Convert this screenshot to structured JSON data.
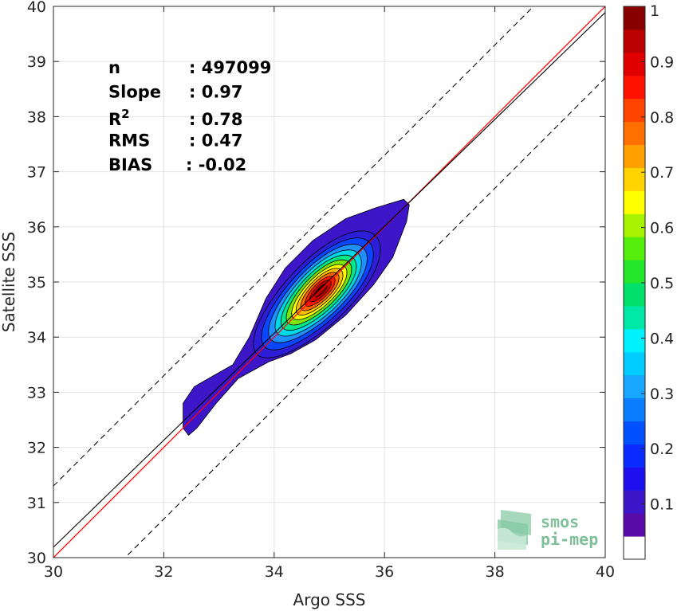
{
  "chart_data": {
    "type": "contour",
    "xlabel": "Argo SSS",
    "ylabel": "Satellite SSS",
    "xlim": [
      30,
      40
    ],
    "ylim": [
      30,
      40
    ],
    "x_ticks": [
      "30",
      "32",
      "34",
      "36",
      "38",
      "40"
    ],
    "y_ticks": [
      "30",
      "31",
      "32",
      "33",
      "34",
      "35",
      "36",
      "37",
      "38",
      "39",
      "40"
    ],
    "grid": true,
    "stats": [
      {
        "label": "n",
        "value": ": 497099"
      },
      {
        "label": "Slope",
        "value": ": 0.97"
      },
      {
        "label": "R",
        "sup": "2",
        "value": ": 0.78"
      },
      {
        "label": "RMS",
        "value": ": 0.47"
      },
      {
        "label": "BIAS",
        "value": ": -0.02"
      }
    ],
    "reference_lines": [
      {
        "kind": "identity",
        "slope": 1.0,
        "intercept": 0.0,
        "color": "#ff0000",
        "style": "solid"
      },
      {
        "kind": "regression",
        "slope": 0.97,
        "intercept": 1.09,
        "color": "#000000",
        "style": "solid"
      },
      {
        "kind": "offset",
        "slope": 1.0,
        "intercept": 1.3,
        "color": "#000000",
        "style": "dashed"
      },
      {
        "kind": "offset",
        "slope": 1.0,
        "intercept": -1.3,
        "color": "#000000",
        "style": "dashed"
      }
    ],
    "density_contours": {
      "center": [
        34.85,
        34.85
      ],
      "major_direction_deg": 45,
      "outer_boundary": [
        [
          32.35,
          32.35
        ],
        [
          32.35,
          32.8
        ],
        [
          32.55,
          33.1
        ],
        [
          32.9,
          33.3
        ],
        [
          33.25,
          33.5
        ],
        [
          33.55,
          34.0
        ],
        [
          33.85,
          34.7
        ],
        [
          34.2,
          35.25
        ],
        [
          34.7,
          35.75
        ],
        [
          35.3,
          36.15
        ],
        [
          35.85,
          36.35
        ],
        [
          36.35,
          36.5
        ],
        [
          36.45,
          36.4
        ],
        [
          36.4,
          36.1
        ],
        [
          36.15,
          35.45
        ],
        [
          35.8,
          34.95
        ],
        [
          35.3,
          34.4
        ],
        [
          34.75,
          33.95
        ],
        [
          34.3,
          33.7
        ],
        [
          33.9,
          33.55
        ],
        [
          33.35,
          33.25
        ],
        [
          32.95,
          32.8
        ],
        [
          32.6,
          32.35
        ],
        [
          32.45,
          32.22
        ]
      ],
      "levels": [
        {
          "level": 0.05,
          "semi_major": 1.52,
          "semi_minor": 0.58,
          "color": "#2b1ed6"
        },
        {
          "level": 0.15,
          "semi_major": 1.34,
          "semi_minor": 0.51,
          "color": "#0a46ff"
        },
        {
          "level": 0.25,
          "semi_major": 1.18,
          "semi_minor": 0.45,
          "color": "#1e90ff"
        },
        {
          "level": 0.35,
          "semi_major": 1.03,
          "semi_minor": 0.4,
          "color": "#00d8e8"
        },
        {
          "level": 0.45,
          "semi_major": 0.9,
          "semi_minor": 0.35,
          "color": "#00e88a"
        },
        {
          "level": 0.55,
          "semi_major": 0.78,
          "semi_minor": 0.3,
          "color": "#7ce60a"
        },
        {
          "level": 0.65,
          "semi_major": 0.66,
          "semi_minor": 0.255,
          "color": "#ffff00"
        },
        {
          "level": 0.72,
          "semi_major": 0.56,
          "semi_minor": 0.215,
          "color": "#ffc000"
        },
        {
          "level": 0.8,
          "semi_major": 0.46,
          "semi_minor": 0.175,
          "color": "#ff6a00"
        },
        {
          "level": 0.88,
          "semi_major": 0.36,
          "semi_minor": 0.135,
          "color": "#ff1a00"
        },
        {
          "level": 0.94,
          "semi_major": 0.26,
          "semi_minor": 0.095,
          "color": "#c80000"
        },
        {
          "level": 0.98,
          "semi_major": 0.15,
          "semi_minor": 0.055,
          "color": "#8b0000"
        }
      ]
    },
    "colorbar": {
      "labels": [
        "0.1",
        "0.2",
        "0.3",
        "0.4",
        "0.5",
        "0.6",
        "0.7",
        "0.8",
        "0.9",
        "1"
      ],
      "colors": [
        "#ffffff",
        "#5a0aa6",
        "#3c16c8",
        "#1e10ee",
        "#0a2bff",
        "#0050ff",
        "#0a7dff",
        "#18a6ff",
        "#00ccff",
        "#00f2ff",
        "#00e8a8",
        "#00e06a",
        "#24e62a",
        "#56ee0c",
        "#a8f400",
        "#ffff00",
        "#ffd400",
        "#ff9f00",
        "#ff7000",
        "#ff4400",
        "#ff1200",
        "#e00000",
        "#ba0000",
        "#880000"
      ]
    },
    "logo": {
      "line1": "smos",
      "line2": "pi-mep"
    }
  }
}
